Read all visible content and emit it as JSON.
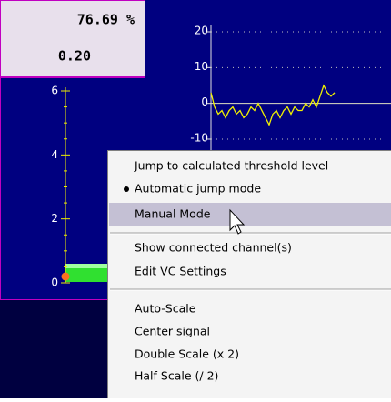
{
  "readout": {
    "percent": "76.69 %",
    "value": "0.20"
  },
  "gauge": {
    "ylim": [
      0,
      6
    ],
    "yticks": [
      0,
      2,
      4,
      6
    ]
  },
  "signal": {
    "type": "line",
    "ylim": [
      -10,
      20
    ],
    "yticks": [
      20,
      10,
      0,
      -10
    ],
    "color": "#f0f000",
    "values": [
      3,
      -1,
      -3,
      -2,
      -4,
      -2,
      -1,
      -3,
      -2,
      -4,
      -3,
      -1,
      -2,
      0,
      -2,
      -4,
      -6,
      -3,
      -2,
      -4,
      -2,
      -1,
      -3,
      -1,
      -2,
      -2,
      0,
      -1,
      1,
      -1,
      2,
      5,
      3,
      2,
      3
    ]
  },
  "menu": {
    "items": [
      {
        "label": "Jump to calculated threshold level"
      },
      {
        "label": "Automatic jump mode",
        "checked": true
      },
      {
        "label": "Manual Mode",
        "highlighted": true
      },
      {
        "label": "Show connected channel(s)"
      },
      {
        "label": "Edit VC Settings",
        "disabled": true
      },
      {
        "label": "Auto-Scale"
      },
      {
        "label": "Center signal"
      },
      {
        "label": "Double Scale (x 2)"
      },
      {
        "label": "Half Scale (/ 2)"
      }
    ]
  }
}
